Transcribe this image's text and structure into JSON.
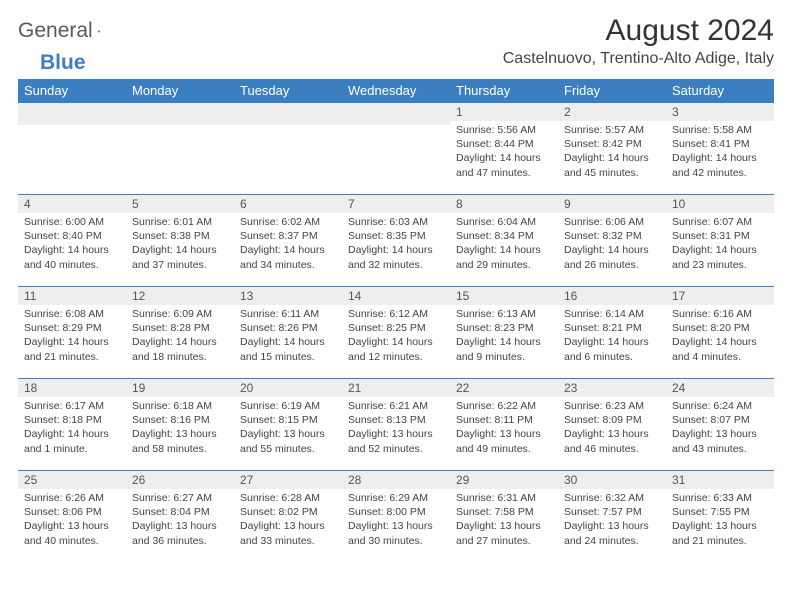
{
  "brand": {
    "word1": "General",
    "word2": "Blue"
  },
  "title": "August 2024",
  "location": "Castelnuovo, Trentino-Alto Adige, Italy",
  "colors": {
    "accent": "#3c7fc0",
    "dayrow_bg": "#eeeeee",
    "text": "#333"
  },
  "weekdays": [
    "Sunday",
    "Monday",
    "Tuesday",
    "Wednesday",
    "Thursday",
    "Friday",
    "Saturday"
  ],
  "weeks": [
    [
      null,
      null,
      null,
      null,
      {
        "n": "1",
        "sr": "5:56 AM",
        "ss": "8:44 PM",
        "dl": "14 hours and 47 minutes."
      },
      {
        "n": "2",
        "sr": "5:57 AM",
        "ss": "8:42 PM",
        "dl": "14 hours and 45 minutes."
      },
      {
        "n": "3",
        "sr": "5:58 AM",
        "ss": "8:41 PM",
        "dl": "14 hours and 42 minutes."
      }
    ],
    [
      {
        "n": "4",
        "sr": "6:00 AM",
        "ss": "8:40 PM",
        "dl": "14 hours and 40 minutes."
      },
      {
        "n": "5",
        "sr": "6:01 AM",
        "ss": "8:38 PM",
        "dl": "14 hours and 37 minutes."
      },
      {
        "n": "6",
        "sr": "6:02 AM",
        "ss": "8:37 PM",
        "dl": "14 hours and 34 minutes."
      },
      {
        "n": "7",
        "sr": "6:03 AM",
        "ss": "8:35 PM",
        "dl": "14 hours and 32 minutes."
      },
      {
        "n": "8",
        "sr": "6:04 AM",
        "ss": "8:34 PM",
        "dl": "14 hours and 29 minutes."
      },
      {
        "n": "9",
        "sr": "6:06 AM",
        "ss": "8:32 PM",
        "dl": "14 hours and 26 minutes."
      },
      {
        "n": "10",
        "sr": "6:07 AM",
        "ss": "8:31 PM",
        "dl": "14 hours and 23 minutes."
      }
    ],
    [
      {
        "n": "11",
        "sr": "6:08 AM",
        "ss": "8:29 PM",
        "dl": "14 hours and 21 minutes."
      },
      {
        "n": "12",
        "sr": "6:09 AM",
        "ss": "8:28 PM",
        "dl": "14 hours and 18 minutes."
      },
      {
        "n": "13",
        "sr": "6:11 AM",
        "ss": "8:26 PM",
        "dl": "14 hours and 15 minutes."
      },
      {
        "n": "14",
        "sr": "6:12 AM",
        "ss": "8:25 PM",
        "dl": "14 hours and 12 minutes."
      },
      {
        "n": "15",
        "sr": "6:13 AM",
        "ss": "8:23 PM",
        "dl": "14 hours and 9 minutes."
      },
      {
        "n": "16",
        "sr": "6:14 AM",
        "ss": "8:21 PM",
        "dl": "14 hours and 6 minutes."
      },
      {
        "n": "17",
        "sr": "6:16 AM",
        "ss": "8:20 PM",
        "dl": "14 hours and 4 minutes."
      }
    ],
    [
      {
        "n": "18",
        "sr": "6:17 AM",
        "ss": "8:18 PM",
        "dl": "14 hours and 1 minute."
      },
      {
        "n": "19",
        "sr": "6:18 AM",
        "ss": "8:16 PM",
        "dl": "13 hours and 58 minutes."
      },
      {
        "n": "20",
        "sr": "6:19 AM",
        "ss": "8:15 PM",
        "dl": "13 hours and 55 minutes."
      },
      {
        "n": "21",
        "sr": "6:21 AM",
        "ss": "8:13 PM",
        "dl": "13 hours and 52 minutes."
      },
      {
        "n": "22",
        "sr": "6:22 AM",
        "ss": "8:11 PM",
        "dl": "13 hours and 49 minutes."
      },
      {
        "n": "23",
        "sr": "6:23 AM",
        "ss": "8:09 PM",
        "dl": "13 hours and 46 minutes."
      },
      {
        "n": "24",
        "sr": "6:24 AM",
        "ss": "8:07 PM",
        "dl": "13 hours and 43 minutes."
      }
    ],
    [
      {
        "n": "25",
        "sr": "6:26 AM",
        "ss": "8:06 PM",
        "dl": "13 hours and 40 minutes."
      },
      {
        "n": "26",
        "sr": "6:27 AM",
        "ss": "8:04 PM",
        "dl": "13 hours and 36 minutes."
      },
      {
        "n": "27",
        "sr": "6:28 AM",
        "ss": "8:02 PM",
        "dl": "13 hours and 33 minutes."
      },
      {
        "n": "28",
        "sr": "6:29 AM",
        "ss": "8:00 PM",
        "dl": "13 hours and 30 minutes."
      },
      {
        "n": "29",
        "sr": "6:31 AM",
        "ss": "7:58 PM",
        "dl": "13 hours and 27 minutes."
      },
      {
        "n": "30",
        "sr": "6:32 AM",
        "ss": "7:57 PM",
        "dl": "13 hours and 24 minutes."
      },
      {
        "n": "31",
        "sr": "6:33 AM",
        "ss": "7:55 PM",
        "dl": "13 hours and 21 minutes."
      }
    ]
  ],
  "labels": {
    "sunrise": "Sunrise:",
    "sunset": "Sunset:",
    "daylight": "Daylight:"
  }
}
